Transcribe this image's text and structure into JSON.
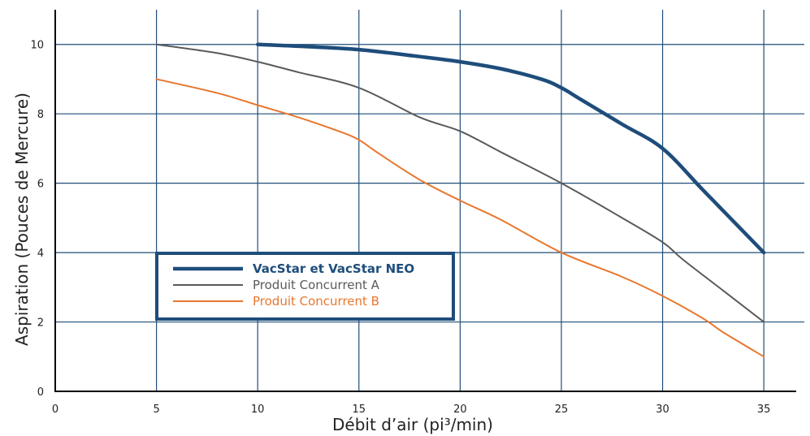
{
  "chart_data": {
    "type": "line",
    "title": "",
    "xlabel": "Débit d’air (pi³/min)",
    "ylabel": "Aspiration (Pouces de Mercure)",
    "xlim": [
      0,
      37
    ],
    "ylim": [
      0,
      11
    ],
    "xticks": [
      0,
      5,
      10,
      15,
      20,
      25,
      30,
      35
    ],
    "yticks": [
      0,
      2,
      4,
      6,
      8,
      10
    ],
    "grid": true,
    "legend_position": "bottom-left",
    "series": [
      {
        "name": "VacStar et VacStar NEO",
        "color": "#1e4d7b",
        "width": 4.5,
        "bold": true,
        "points": [
          [
            10,
            10
          ],
          [
            12,
            9.95
          ],
          [
            15,
            9.85
          ],
          [
            18,
            9.65
          ],
          [
            20,
            9.5
          ],
          [
            22,
            9.3
          ],
          [
            24,
            9.0
          ],
          [
            25,
            8.75
          ],
          [
            26,
            8.4
          ],
          [
            28,
            7.7
          ],
          [
            30,
            7.0
          ],
          [
            32,
            5.8
          ],
          [
            34,
            4.6
          ],
          [
            35,
            4.0
          ]
        ]
      },
      {
        "name": "Produit Concurrent A",
        "color": "#5a5a5a",
        "width": 2,
        "bold": false,
        "points": [
          [
            5,
            10
          ],
          [
            8,
            9.75
          ],
          [
            10,
            9.5
          ],
          [
            12,
            9.2
          ],
          [
            15,
            8.75
          ],
          [
            18,
            7.9
          ],
          [
            20,
            7.5
          ],
          [
            22,
            6.9
          ],
          [
            25,
            6.0
          ],
          [
            28,
            5.0
          ],
          [
            30,
            4.3
          ],
          [
            31,
            3.8
          ],
          [
            33,
            2.9
          ],
          [
            35,
            2.0
          ]
        ]
      },
      {
        "name": "Produit Concurrent B",
        "color": "#e8772e",
        "width": 2,
        "bold": false,
        "points": [
          [
            5,
            9.0
          ],
          [
            8,
            8.6
          ],
          [
            10,
            8.25
          ],
          [
            12,
            7.9
          ],
          [
            14,
            7.5
          ],
          [
            15,
            7.25
          ],
          [
            16,
            6.85
          ],
          [
            18,
            6.1
          ],
          [
            20,
            5.5
          ],
          [
            22,
            4.95
          ],
          [
            25,
            4.0
          ],
          [
            28,
            3.3
          ],
          [
            30,
            2.75
          ],
          [
            32,
            2.1
          ],
          [
            33,
            1.7
          ],
          [
            35,
            1.0
          ]
        ]
      }
    ]
  }
}
